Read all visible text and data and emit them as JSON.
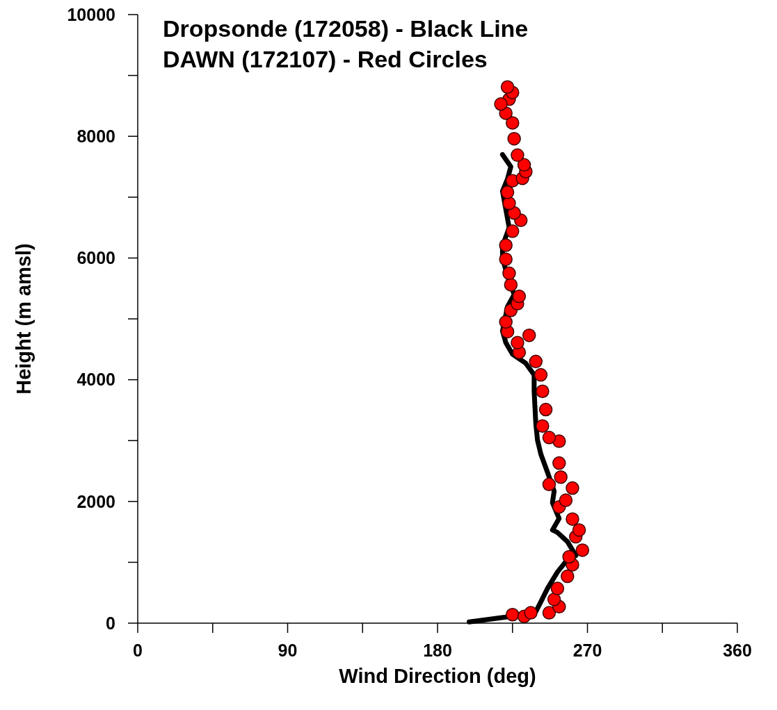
{
  "chart_data": {
    "type": "line",
    "xlabel": "Wind Direction (deg)",
    "ylabel": "Height (m amsl)",
    "annotations": [
      "Dropsonde (172058) - Black Line",
      "DAWN (172107) - Red Circles"
    ],
    "xlim": [
      0,
      360
    ],
    "ylim": [
      0,
      10000
    ],
    "xticks": [
      0,
      {
        "value": 45,
        "label": null
      },
      90,
      {
        "value": 135,
        "label": null
      },
      180,
      {
        "value": 225,
        "label": null
      },
      270,
      {
        "value": 315,
        "label": null
      },
      360
    ],
    "yticks": [
      0,
      {
        "value": 1000,
        "label": null
      },
      2000,
      {
        "value": 3000,
        "label": null
      },
      4000,
      {
        "value": 5000,
        "label": null
      },
      6000,
      {
        "value": 7000,
        "label": null
      },
      8000,
      {
        "value": 9000,
        "label": null
      },
      10000
    ],
    "line_style": "solid",
    "series": [
      {
        "color": "#000000",
        "x": [
          199,
          221,
          239,
          242,
          246,
          252,
          257,
          263,
          258,
          252,
          249,
          253,
          249,
          250,
          246,
          242,
          240,
          239,
          238,
          238,
          233,
          225,
          221,
          219,
          222,
          226,
          222,
          219,
          219,
          223,
          220,
          219,
          222,
          224,
          219
        ],
        "values": [
          20,
          100,
          190,
          350,
          570,
          840,
          1010,
          1110,
          1340,
          1490,
          1530,
          1720,
          1980,
          2170,
          2480,
          2780,
          3010,
          3280,
          3810,
          4080,
          4270,
          4420,
          4610,
          4800,
          5200,
          5400,
          5700,
          6000,
          6200,
          6500,
          6950,
          7100,
          7300,
          7500,
          7700
        ]
      },
      {
        "type": "scatter",
        "color": "#ff0000",
        "marker": "circle",
        "x": [
          225,
          232,
          236,
          247,
          253,
          250,
          252,
          258,
          261,
          259,
          267,
          263,
          265,
          261,
          253,
          257,
          261,
          247,
          254,
          253,
          253,
          247,
          243,
          245,
          243,
          242,
          239,
          229,
          235,
          228,
          222,
          221,
          224,
          228,
          229,
          224,
          223,
          221,
          221,
          225,
          230,
          226,
          223,
          222,
          225,
          231,
          233,
          232,
          228,
          226,
          225,
          221,
          223,
          218,
          225,
          222
        ],
        "values": [
          140,
          110,
          170,
          170,
          270,
          390,
          570,
          770,
          960,
          1090,
          1200,
          1420,
          1530,
          1710,
          1910,
          2020,
          2220,
          2280,
          2400,
          2630,
          2990,
          3050,
          3240,
          3510,
          3810,
          4080,
          4300,
          4450,
          4730,
          4610,
          4790,
          4950,
          5140,
          5250,
          5370,
          5560,
          5750,
          5980,
          6210,
          6440,
          6620,
          6740,
          6900,
          7080,
          7270,
          7310,
          7420,
          7530,
          7690,
          7960,
          8220,
          8380,
          8610,
          8530,
          8720,
          8810
        ]
      }
    ]
  }
}
